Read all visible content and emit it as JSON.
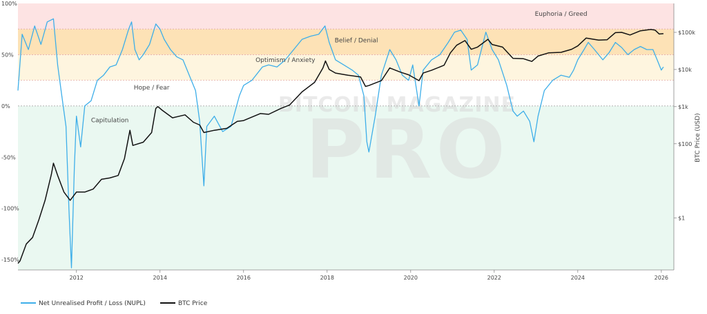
{
  "chart_data": {
    "type": "line",
    "watermark": {
      "line1": "BITCOIN MAGAZINE",
      "line2": "PRO"
    },
    "x_axis": {
      "ticks": [
        "2012",
        "2014",
        "2016",
        "2018",
        "2020",
        "2022",
        "2024",
        "2026"
      ],
      "range": [
        2010.6,
        2026.3
      ]
    },
    "y_left": {
      "ticks": [
        {
          "value": 100,
          "label": "100%"
        },
        {
          "value": 50,
          "label": "50%"
        },
        {
          "value": 0,
          "label": "0%"
        },
        {
          "value": -50,
          "label": "-50%"
        },
        {
          "value": -100,
          "label": "-100%"
        },
        {
          "value": -150,
          "label": "-150%"
        }
      ],
      "range": [
        -160,
        100
      ]
    },
    "y_right": {
      "title": "BTC Price (USD)",
      "scale": "log",
      "ticks": [
        {
          "value": 100000,
          "label": "$100k"
        },
        {
          "value": 10000,
          "label": "$10k"
        },
        {
          "value": 1000,
          "label": "$1k"
        },
        {
          "value": 100,
          "label": "$100"
        },
        {
          "value": 1,
          "label": "$1"
        }
      ],
      "range": [
        0.04,
        600000
      ]
    },
    "zones": [
      {
        "label": "Euphoria / Greed",
        "from": 75,
        "to": 100,
        "color": "#fde3e3"
      },
      {
        "label": "Belief / Denial",
        "from": 50,
        "to": 75,
        "color": "#fde2b6"
      },
      {
        "label": "Optimism / Anxiety",
        "from": 25,
        "to": 50,
        "color": "#fef5df"
      },
      {
        "label": "Hope / Fear",
        "from": 0,
        "to": 25,
        "color": "#ffffff"
      },
      {
        "label": "Capitulation",
        "from": -160,
        "to": 0,
        "color": "#eaf8f1"
      }
    ],
    "series": [
      {
        "name": "Net Unrealised Profit / Loss (NUPL)",
        "color": "#3daee9",
        "axis": "left",
        "points": [
          [
            2010.6,
            15
          ],
          [
            2010.7,
            70
          ],
          [
            2010.85,
            55
          ],
          [
            2011.0,
            78
          ],
          [
            2011.15,
            60
          ],
          [
            2011.3,
            82
          ],
          [
            2011.45,
            85
          ],
          [
            2011.55,
            40
          ],
          [
            2011.65,
            10
          ],
          [
            2011.75,
            -20
          ],
          [
            2011.82,
            -100
          ],
          [
            2011.88,
            -158
          ],
          [
            2011.95,
            -60
          ],
          [
            2012.0,
            -10
          ],
          [
            2012.1,
            -40
          ],
          [
            2012.2,
            0
          ],
          [
            2012.35,
            5
          ],
          [
            2012.5,
            25
          ],
          [
            2012.65,
            30
          ],
          [
            2012.8,
            38
          ],
          [
            2012.95,
            40
          ],
          [
            2013.1,
            55
          ],
          [
            2013.25,
            75
          ],
          [
            2013.32,
            82
          ],
          [
            2013.4,
            55
          ],
          [
            2013.5,
            45
          ],
          [
            2013.6,
            50
          ],
          [
            2013.75,
            60
          ],
          [
            2013.9,
            80
          ],
          [
            2014.0,
            75
          ],
          [
            2014.1,
            65
          ],
          [
            2014.25,
            55
          ],
          [
            2014.4,
            48
          ],
          [
            2014.55,
            45
          ],
          [
            2014.7,
            30
          ],
          [
            2014.85,
            15
          ],
          [
            2014.95,
            -15
          ],
          [
            2015.05,
            -78
          ],
          [
            2015.12,
            -20
          ],
          [
            2015.3,
            -10
          ],
          [
            2015.5,
            -25
          ],
          [
            2015.7,
            -20
          ],
          [
            2015.9,
            10
          ],
          [
            2016.0,
            20
          ],
          [
            2016.2,
            25
          ],
          [
            2016.45,
            38
          ],
          [
            2016.6,
            40
          ],
          [
            2016.8,
            38
          ],
          [
            2017.0,
            45
          ],
          [
            2017.2,
            55
          ],
          [
            2017.4,
            65
          ],
          [
            2017.6,
            68
          ],
          [
            2017.8,
            70
          ],
          [
            2017.95,
            78
          ],
          [
            2018.05,
            62
          ],
          [
            2018.2,
            45
          ],
          [
            2018.4,
            40
          ],
          [
            2018.6,
            35
          ],
          [
            2018.75,
            30
          ],
          [
            2018.88,
            10
          ],
          [
            2018.95,
            -35
          ],
          [
            2019.0,
            -45
          ],
          [
            2019.15,
            -10
          ],
          [
            2019.3,
            30
          ],
          [
            2019.5,
            55
          ],
          [
            2019.65,
            45
          ],
          [
            2019.8,
            30
          ],
          [
            2019.95,
            25
          ],
          [
            2020.05,
            40
          ],
          [
            2020.2,
            0
          ],
          [
            2020.3,
            35
          ],
          [
            2020.5,
            45
          ],
          [
            2020.7,
            50
          ],
          [
            2020.9,
            62
          ],
          [
            2021.05,
            72
          ],
          [
            2021.2,
            74
          ],
          [
            2021.35,
            65
          ],
          [
            2021.45,
            35
          ],
          [
            2021.6,
            40
          ],
          [
            2021.8,
            72
          ],
          [
            2021.95,
            55
          ],
          [
            2022.1,
            45
          ],
          [
            2022.3,
            20
          ],
          [
            2022.45,
            -5
          ],
          [
            2022.55,
            -10
          ],
          [
            2022.7,
            -5
          ],
          [
            2022.85,
            -15
          ],
          [
            2022.95,
            -35
          ],
          [
            2023.05,
            -10
          ],
          [
            2023.2,
            15
          ],
          [
            2023.4,
            25
          ],
          [
            2023.6,
            30
          ],
          [
            2023.8,
            28
          ],
          [
            2023.9,
            35
          ],
          [
            2024.0,
            45
          ],
          [
            2024.15,
            55
          ],
          [
            2024.25,
            62
          ],
          [
            2024.4,
            55
          ],
          [
            2024.6,
            45
          ],
          [
            2024.75,
            52
          ],
          [
            2024.9,
            62
          ],
          [
            2025.05,
            57
          ],
          [
            2025.2,
            50
          ],
          [
            2025.35,
            55
          ],
          [
            2025.5,
            58
          ],
          [
            2025.65,
            55
          ],
          [
            2025.8,
            55
          ],
          [
            2025.9,
            45
          ],
          [
            2026.0,
            35
          ],
          [
            2026.05,
            38
          ]
        ]
      },
      {
        "name": "BTC Price",
        "color": "#111111",
        "axis": "right",
        "points": [
          [
            2010.6,
            0.06
          ],
          [
            2010.65,
            0.07
          ],
          [
            2010.8,
            0.2
          ],
          [
            2010.95,
            0.3
          ],
          [
            2011.1,
            0.9
          ],
          [
            2011.25,
            3
          ],
          [
            2011.4,
            15
          ],
          [
            2011.45,
            30
          ],
          [
            2011.55,
            14
          ],
          [
            2011.7,
            5
          ],
          [
            2011.85,
            3
          ],
          [
            2012.0,
            5
          ],
          [
            2012.2,
            5
          ],
          [
            2012.4,
            6
          ],
          [
            2012.6,
            11
          ],
          [
            2012.8,
            12
          ],
          [
            2013.0,
            14
          ],
          [
            2013.15,
            40
          ],
          [
            2013.28,
            230
          ],
          [
            2013.35,
            90
          ],
          [
            2013.6,
            110
          ],
          [
            2013.8,
            200
          ],
          [
            2013.9,
            900
          ],
          [
            2013.95,
            1000
          ],
          [
            2014.05,
            800
          ],
          [
            2014.3,
            500
          ],
          [
            2014.6,
            600
          ],
          [
            2014.8,
            380
          ],
          [
            2014.95,
            320
          ],
          [
            2015.05,
            200
          ],
          [
            2015.3,
            230
          ],
          [
            2015.6,
            260
          ],
          [
            2015.85,
            400
          ],
          [
            2016.0,
            420
          ],
          [
            2016.4,
            650
          ],
          [
            2016.6,
            620
          ],
          [
            2016.9,
            900
          ],
          [
            2017.1,
            1100
          ],
          [
            2017.4,
            2500
          ],
          [
            2017.7,
            4500
          ],
          [
            2017.9,
            11000
          ],
          [
            2017.96,
            17000
          ],
          [
            2018.05,
            10000
          ],
          [
            2018.2,
            8000
          ],
          [
            2018.5,
            7000
          ],
          [
            2018.8,
            6300
          ],
          [
            2018.92,
            3500
          ],
          [
            2019.0,
            3700
          ],
          [
            2019.3,
            5000
          ],
          [
            2019.5,
            11000
          ],
          [
            2019.75,
            8500
          ],
          [
            2019.95,
            7200
          ],
          [
            2020.2,
            5000
          ],
          [
            2020.3,
            8000
          ],
          [
            2020.5,
            9500
          ],
          [
            2020.8,
            13000
          ],
          [
            2020.95,
            28000
          ],
          [
            2021.1,
            45000
          ],
          [
            2021.3,
            60000
          ],
          [
            2021.45,
            35000
          ],
          [
            2021.6,
            40000
          ],
          [
            2021.85,
            65000
          ],
          [
            2021.95,
            47000
          ],
          [
            2022.2,
            40000
          ],
          [
            2022.45,
            20000
          ],
          [
            2022.7,
            19500
          ],
          [
            2022.9,
            16500
          ],
          [
            2023.05,
            23000
          ],
          [
            2023.3,
            28000
          ],
          [
            2023.6,
            29000
          ],
          [
            2023.85,
            35000
          ],
          [
            2024.0,
            43000
          ],
          [
            2024.2,
            70000
          ],
          [
            2024.5,
            62000
          ],
          [
            2024.7,
            63000
          ],
          [
            2024.9,
            98000
          ],
          [
            2025.05,
            100000
          ],
          [
            2025.25,
            85000
          ],
          [
            2025.5,
            110000
          ],
          [
            2025.75,
            120000
          ],
          [
            2025.85,
            115000
          ],
          [
            2025.95,
            90000
          ],
          [
            2026.05,
            92000
          ]
        ]
      }
    ],
    "legend": {
      "position": "bottom-left"
    }
  }
}
